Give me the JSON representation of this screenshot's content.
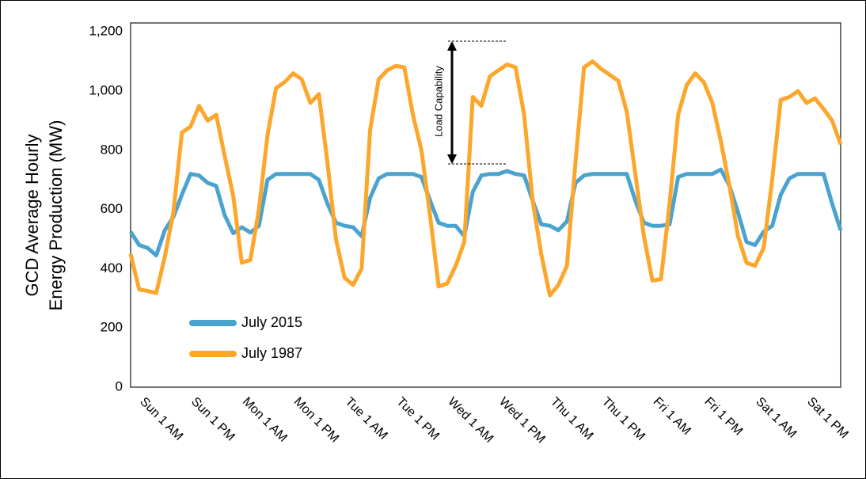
{
  "chart_data": {
    "type": "line",
    "ylabel": [
      "GCD Average Hourly",
      "Energy Production (MW)"
    ],
    "annotation": "Load Capability",
    "categories": [
      "Sun 1 AM",
      null,
      null,
      null,
      null,
      null,
      "Sun 1 PM",
      null,
      null,
      null,
      null,
      null,
      "Mon 1 AM",
      null,
      null,
      null,
      null,
      null,
      "Mon 1 PM",
      null,
      null,
      null,
      null,
      null,
      "Tue 1 AM",
      null,
      null,
      null,
      null,
      null,
      "Tue 1 PM",
      null,
      null,
      null,
      null,
      null,
      "Wed 1 AM",
      null,
      null,
      null,
      null,
      null,
      "Wed 1 PM",
      null,
      null,
      null,
      null,
      null,
      "Thu 1 AM",
      null,
      null,
      null,
      null,
      null,
      "Thu 1 PM",
      null,
      null,
      null,
      null,
      null,
      "Fri 1 AM",
      null,
      null,
      null,
      null,
      null,
      "Fri 1 PM",
      null,
      null,
      null,
      null,
      null,
      "Sat 1 AM",
      null,
      null,
      null,
      null,
      null,
      "Sat 1 PM",
      null,
      null,
      null,
      null,
      null
    ],
    "series": [
      {
        "name": "July 2015",
        "color": "#4aa3cf",
        "values": [
          525,
          480,
          470,
          445,
          530,
          575,
          650,
          720,
          715,
          690,
          680,
          580,
          520,
          540,
          522,
          545,
          700,
          720,
          720,
          720,
          720,
          720,
          700,
          620,
          555,
          545,
          540,
          510,
          640,
          705,
          720,
          720,
          720,
          720,
          710,
          630,
          555,
          545,
          545,
          510,
          660,
          715,
          720,
          720,
          730,
          720,
          715,
          630,
          550,
          545,
          530,
          560,
          690,
          715,
          720,
          720,
          720,
          720,
          720,
          630,
          555,
          545,
          545,
          550,
          710,
          720,
          720,
          720,
          720,
          735,
          680,
          590,
          490,
          480,
          525,
          545,
          650,
          705,
          720,
          720,
          720,
          720,
          620,
          530
        ]
      },
      {
        "name": "July 1987",
        "color": "#fca62b",
        "values": [
          450,
          330,
          325,
          318,
          440,
          590,
          860,
          880,
          950,
          900,
          920,
          780,
          645,
          420,
          430,
          600,
          850,
          1010,
          1030,
          1060,
          1040,
          960,
          990,
          760,
          500,
          370,
          345,
          400,
          870,
          1040,
          1070,
          1085,
          1080,
          920,
          800,
          580,
          340,
          350,
          410,
          490,
          980,
          950,
          1050,
          1070,
          1090,
          1080,
          920,
          630,
          450,
          310,
          345,
          410,
          760,
          1080,
          1100,
          1075,
          1055,
          1035,
          930,
          720,
          510,
          360,
          365,
          620,
          920,
          1020,
          1060,
          1030,
          960,
          830,
          680,
          510,
          420,
          410,
          470,
          700,
          970,
          980,
          1000,
          960,
          975,
          940,
          900,
          820
        ]
      }
    ],
    "ylim": [
      0,
      1230
    ],
    "yticks": [
      0,
      200,
      400,
      600,
      800,
      {
        "value": 1000,
        "label": "1,000"
      },
      {
        "value": 1200,
        "label": "1,200"
      }
    ],
    "grid": false,
    "legend": "lower left"
  }
}
